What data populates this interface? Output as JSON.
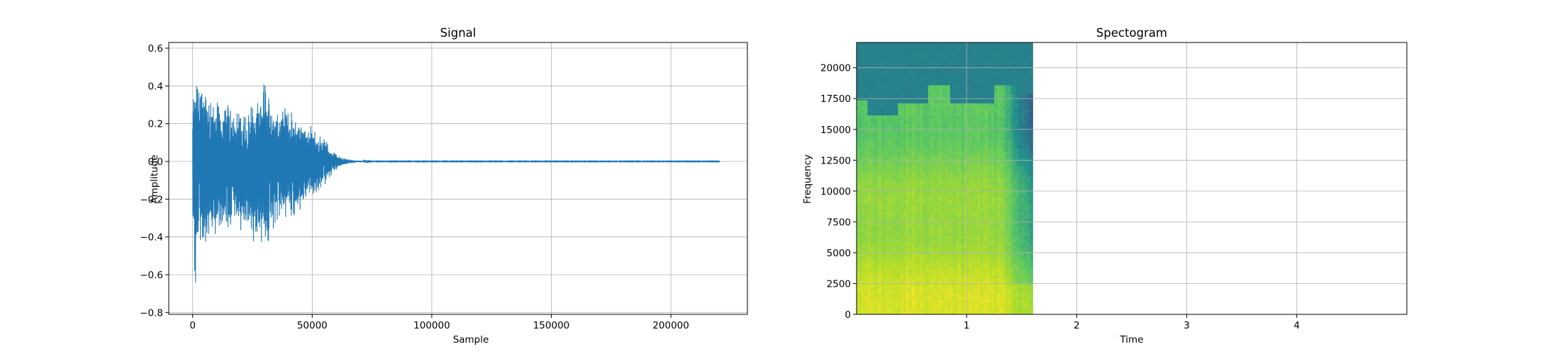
{
  "chart_data": [
    {
      "type": "line",
      "title": "Signal",
      "xlabel": "Sample",
      "ylabel": "Amplitude",
      "xlim": [
        -10000,
        232000
      ],
      "ylim": [
        -0.81,
        0.63
      ],
      "xticks": [
        0,
        50000,
        100000,
        150000,
        200000
      ],
      "xtick_labels": [
        "0",
        "50000",
        "100000",
        "150000",
        "200000"
      ],
      "yticks": [
        -0.8,
        -0.6,
        -0.4,
        -0.2,
        0.0,
        0.2,
        0.4,
        0.6
      ],
      "ytick_labels": [
        "−0.8",
        "−0.6",
        "−0.4",
        "−0.2",
        "0.0",
        "0.2",
        "0.4",
        "0.6"
      ],
      "grid": true,
      "color": "#1f77b4",
      "n_samples": 220500,
      "envelope": {
        "x": [
          0,
          1000,
          2000,
          4000,
          6000,
          8000,
          10000,
          12000,
          15000,
          18000,
          20000,
          22000,
          25000,
          28000,
          30000,
          32000,
          35000,
          38000,
          40000,
          42000,
          45000,
          48000,
          50000,
          52000,
          55000,
          58000,
          60000,
          63000,
          66000,
          70000,
          75000,
          220500
        ],
        "upper": [
          0.3,
          0.57,
          0.5,
          0.44,
          0.4,
          0.38,
          0.36,
          0.3,
          0.33,
          0.28,
          0.3,
          0.27,
          0.35,
          0.3,
          0.48,
          0.38,
          0.28,
          0.32,
          0.3,
          0.25,
          0.24,
          0.18,
          0.2,
          0.15,
          0.14,
          0.06,
          0.04,
          0.02,
          0.01,
          0.005,
          0.002,
          0.002
        ],
        "lower": [
          -0.3,
          -0.72,
          -0.6,
          -0.5,
          -0.45,
          -0.42,
          -0.4,
          -0.38,
          -0.42,
          -0.35,
          -0.38,
          -0.4,
          -0.45,
          -0.4,
          -0.55,
          -0.45,
          -0.42,
          -0.35,
          -0.3,
          -0.32,
          -0.28,
          -0.22,
          -0.2,
          -0.18,
          -0.14,
          -0.08,
          -0.05,
          -0.02,
          -0.01,
          -0.005,
          -0.002,
          -0.002
        ]
      }
    },
    {
      "type": "heatmap",
      "title": "Spectogram",
      "xlabel": "Time",
      "ylabel": "Frequency",
      "xlim": [
        0,
        5.0
      ],
      "ylim": [
        0,
        22050
      ],
      "xticks": [
        1,
        2,
        3,
        4
      ],
      "xtick_labels": [
        "1",
        "2",
        "3",
        "4"
      ],
      "yticks": [
        0,
        2500,
        5000,
        7500,
        10000,
        12500,
        15000,
        17500,
        20000
      ],
      "ytick_labels": [
        "0",
        "2500",
        "5000",
        "7500",
        "10000",
        "12500",
        "15000",
        "17500",
        "20000"
      ],
      "grid": true,
      "colormap": "viridis",
      "signal_end_time": 1.6,
      "decay_start_time": 1.3,
      "cutoff_freq": [
        {
          "t_start": 0.0,
          "t_end": 0.1,
          "freq": 17500
        },
        {
          "t_start": 0.1,
          "t_end": 0.38,
          "freq": 16200
        },
        {
          "t_start": 0.38,
          "t_end": 0.65,
          "freq": 17200
        },
        {
          "t_start": 0.65,
          "t_end": 0.85,
          "freq": 18500
        },
        {
          "t_start": 0.85,
          "t_end": 1.25,
          "freq": 17200
        },
        {
          "t_start": 1.25,
          "t_end": 1.45,
          "freq": 18500
        },
        {
          "t_start": 1.45,
          "t_end": 1.6,
          "freq": 17800
        }
      ]
    }
  ]
}
